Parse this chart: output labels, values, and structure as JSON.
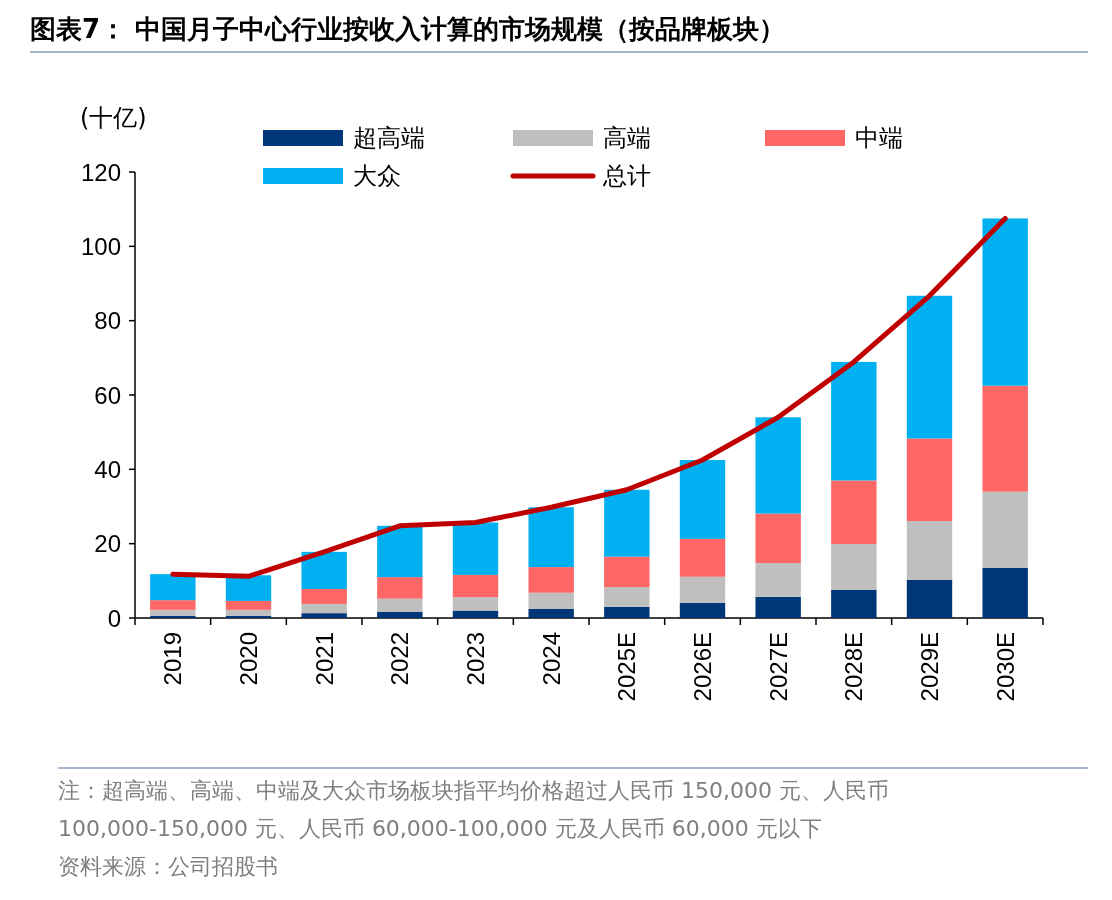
{
  "chart_data": {
    "type": "bar",
    "stacked": true,
    "title": "图表7：  中国月子中心行业按收入计算的市场规模（按品牌板块）",
    "ylabel": "(十亿)",
    "categories": [
      "2019",
      "2020",
      "2021",
      "2022",
      "2023",
      "2024",
      "2025E",
      "2026E",
      "2027E",
      "2028E",
      "2029E",
      "2030E"
    ],
    "series": [
      {
        "name": "超高端",
        "color": "#003778",
        "values": [
          0.6,
          0.6,
          1.3,
          1.7,
          2.0,
          2.5,
          3.0,
          4.1,
          5.7,
          7.6,
          10.3,
          13.5
        ]
      },
      {
        "name": "高端",
        "color": "#bfbfbf",
        "values": [
          1.6,
          1.6,
          2.5,
          3.5,
          3.6,
          4.3,
          5.3,
          7.0,
          9.1,
          12.3,
          15.8,
          20.5
        ]
      },
      {
        "name": "中端",
        "color": "#ff6666",
        "values": [
          2.6,
          2.4,
          4.0,
          5.8,
          6.0,
          6.9,
          8.2,
          10.2,
          13.3,
          17.1,
          22.2,
          28.5
        ]
      },
      {
        "name": "大众",
        "color": "#00b0f0",
        "values": [
          7.0,
          6.9,
          10.0,
          13.8,
          14.1,
          16.1,
          18.0,
          21.2,
          25.9,
          31.9,
          38.4,
          45.0
        ]
      },
      {
        "name": "总计",
        "type": "line",
        "color": "#c00000",
        "values": [
          11.8,
          11.2,
          17.8,
          24.8,
          25.7,
          29.8,
          34.5,
          42.5,
          54.0,
          68.9,
          86.7,
          107.5
        ]
      }
    ],
    "ylim": [
      0,
      120
    ],
    "yticks": [
      0,
      20,
      40,
      60,
      80,
      100,
      120
    ],
    "grid": false,
    "legend": "top",
    "annotations": [
      "注：超高端、高端、中端及大众市场板块指平均价格超过人民币 150,000 元、人民币 100,000-150,000 元、人民币 60,000-100,000 元及人民币 60,000 元以下",
      "资料来源：公司招股书"
    ]
  }
}
